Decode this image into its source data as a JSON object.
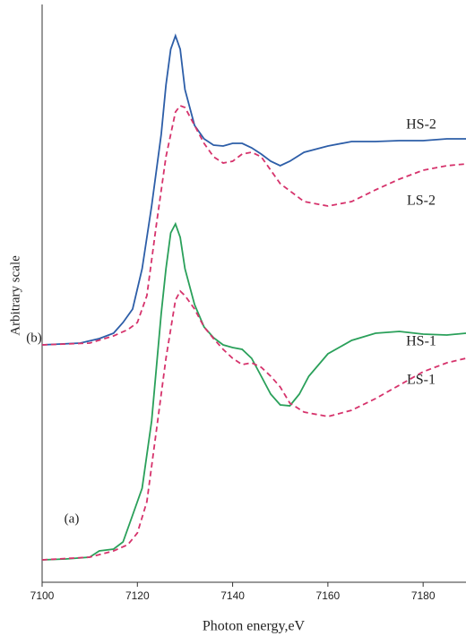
{
  "chart_data": {
    "type": "line",
    "xlabel": "Photon energy,eV",
    "ylabel": "Arbitrary scale",
    "xlim": [
      7100,
      7189
    ],
    "xticks": [
      7100,
      7120,
      7140,
      7160,
      7180
    ],
    "ylim": [
      0,
      645
    ],
    "annotations": [
      "(b)",
      "(a)"
    ],
    "series": [
      {
        "name": "HS-2",
        "color": "#2d5ea8",
        "linestyle": "solid",
        "x": [
          7100,
          7108,
          7112,
          7115,
          7117,
          7119,
          7121,
          7123,
          7125,
          7126,
          7127,
          7128,
          7129,
          7130,
          7132,
          7134,
          7136,
          7138,
          7140,
          7142,
          7144,
          7146,
          7148,
          7150,
          7152,
          7155,
          7160,
          7165,
          7170,
          7175,
          7180,
          7185,
          7189
        ],
        "values": [
          265,
          267,
          272,
          278,
          290,
          305,
          350,
          420,
          500,
          555,
          595,
          610,
          595,
          550,
          510,
          495,
          488,
          487,
          490,
          490,
          485,
          478,
          470,
          465,
          470,
          480,
          487,
          492,
          492,
          493,
          493,
          495,
          495
        ]
      },
      {
        "name": "LS-2",
        "color": "#d6336c",
        "linestyle": "dashed",
        "x": [
          7100,
          7110,
          7115,
          7118,
          7120,
          7122,
          7124,
          7126,
          7128,
          7129,
          7130,
          7132,
          7134,
          7136,
          7138,
          7140,
          7142,
          7144,
          7146,
          7148,
          7150,
          7155,
          7160,
          7165,
          7170,
          7175,
          7180,
          7185,
          7189
        ],
        "values": [
          265,
          267,
          275,
          282,
          290,
          320,
          400,
          475,
          525,
          532,
          530,
          510,
          490,
          475,
          468,
          470,
          478,
          480,
          475,
          460,
          445,
          425,
          420,
          425,
          438,
          450,
          460,
          465,
          467
        ]
      },
      {
        "name": "HS-1",
        "color": "#2aa05a",
        "linestyle": "solid",
        "x": [
          7100,
          7105,
          7110,
          7112,
          7115,
          7117,
          7119,
          7121,
          7123,
          7125,
          7126,
          7127,
          7128,
          7129,
          7130,
          7132,
          7134,
          7136,
          7138,
          7140,
          7142,
          7144,
          7146,
          7148,
          7150,
          7152,
          7154,
          7156,
          7160,
          7165,
          7170,
          7175,
          7180,
          7185,
          7189
        ],
        "values": [
          25,
          26,
          28,
          35,
          37,
          45,
          75,
          105,
          180,
          300,
          350,
          390,
          400,
          385,
          350,
          310,
          285,
          273,
          265,
          262,
          260,
          250,
          230,
          210,
          198,
          197,
          210,
          230,
          255,
          270,
          278,
          280,
          277,
          276,
          278
        ]
      },
      {
        "name": "LS-1",
        "color": "#d6336c",
        "linestyle": "dashed",
        "x": [
          7100,
          7110,
          7115,
          7118,
          7120,
          7122,
          7124,
          7126,
          7128,
          7129,
          7130,
          7132,
          7134,
          7136,
          7138,
          7140,
          7142,
          7144,
          7146,
          7148,
          7150,
          7152,
          7155,
          7160,
          7165,
          7170,
          7175,
          7180,
          7185,
          7189
        ],
        "values": [
          25,
          28,
          35,
          42,
          55,
          90,
          170,
          250,
          315,
          325,
          320,
          305,
          285,
          272,
          260,
          250,
          243,
          245,
          240,
          230,
          218,
          200,
          190,
          185,
          192,
          205,
          220,
          235,
          245,
          250
        ]
      }
    ]
  }
}
